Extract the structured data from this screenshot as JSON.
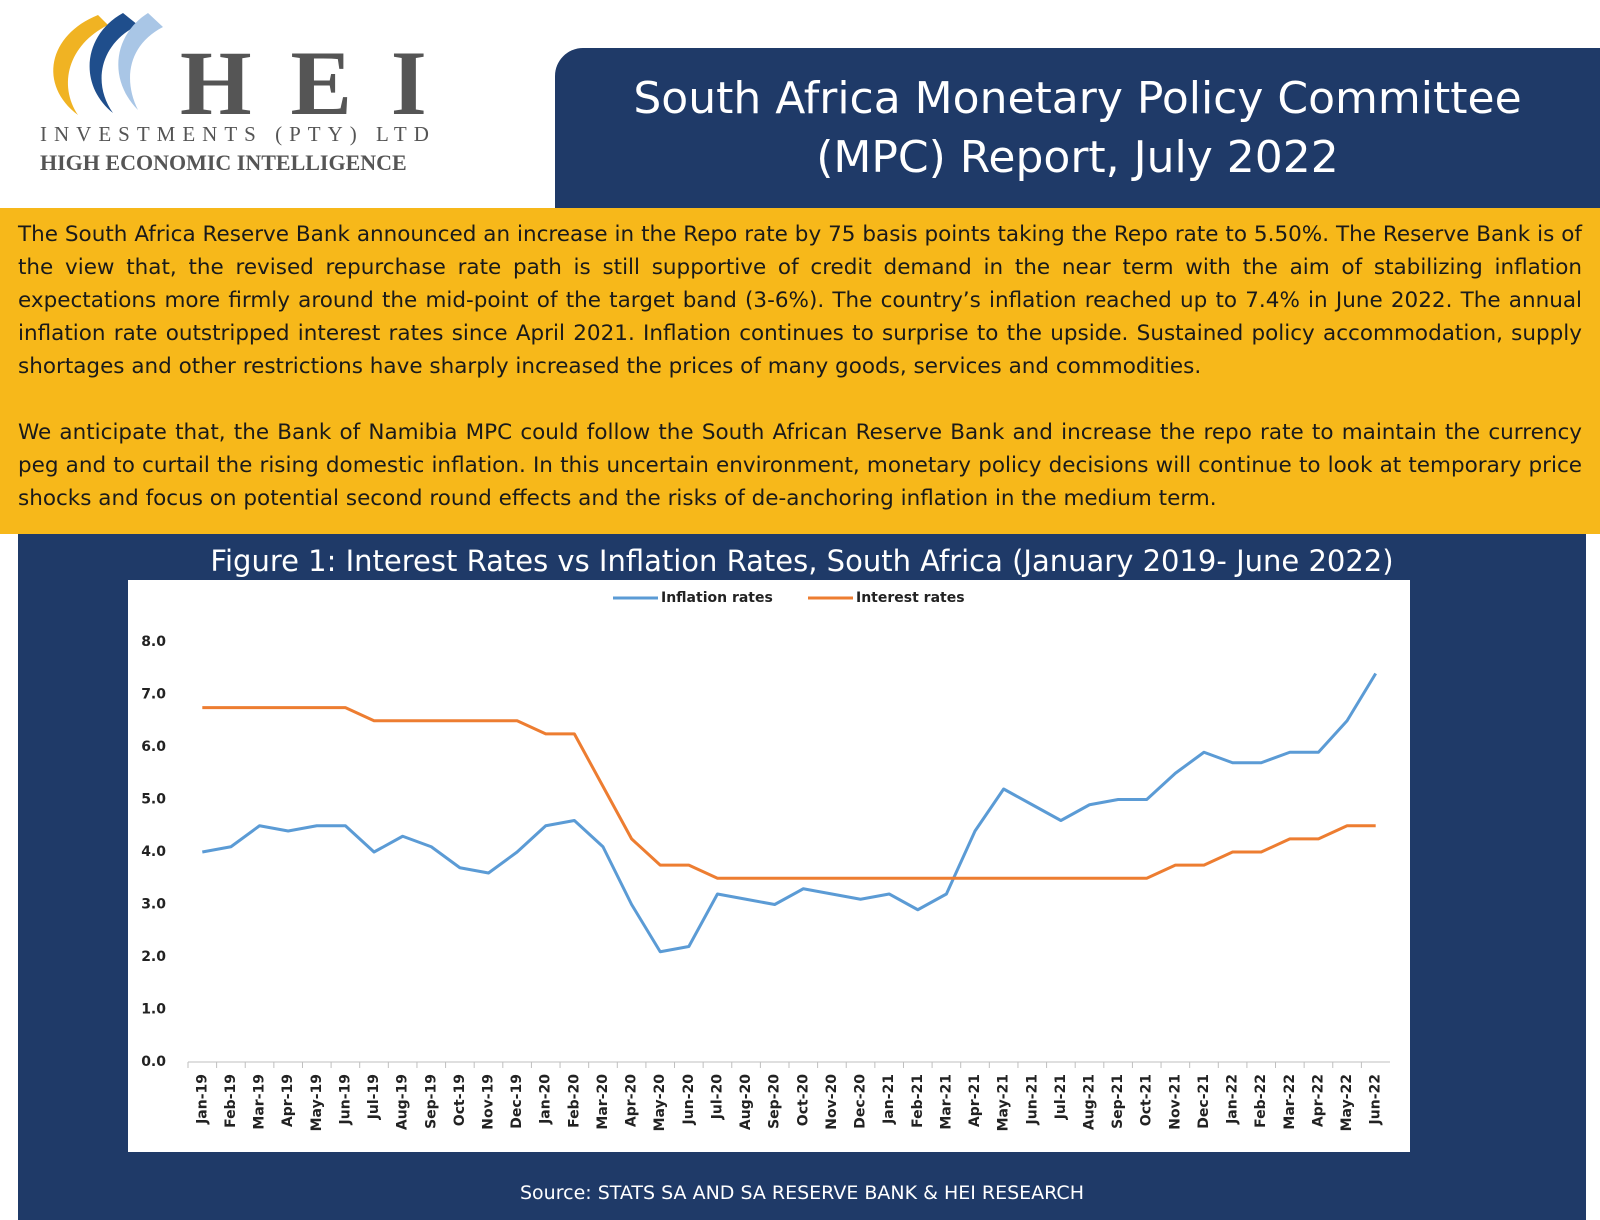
{
  "header": {
    "brand": "H E I",
    "company": "INVESTMENTS (PTY) LTD",
    "tagline": "HIGH ECONOMIC INTELLIGENCE",
    "title": "South Africa Monetary Policy Committee (MPC) Report, July 2022"
  },
  "paragraphs": [
    "The South Africa Reserve Bank announced an increase in the Repo rate by 75 basis points taking the Repo rate to 5.50%. The Reserve Bank is of the view that, the revised repurchase rate path is still supportive of credit demand in the near term with the aim of stabilizing inflation expectations more firmly around the mid-point of the target band (3-6%). The country’s inflation reached up to 7.4% in June 2022. The annual inflation rate outstripped interest rates since April 2021. Inflation continues to surprise to the upside. Sustained policy accommodation, supply shortages and other restrictions have sharply increased the prices of many goods, services and commodities.",
    "We anticipate that, the Bank of Namibia MPC could follow the South African Reserve Bank and increase the repo rate to maintain the currency peg and to curtail the rising domestic inflation. In this uncertain environment, monetary policy decisions will continue to look at temporary price shocks and focus on potential second round effects and the risks of de-anchoring inflation in the medium term."
  ],
  "chart_data": {
    "type": "line",
    "title": "Figure 1: Interest Rates vs Inflation Rates, South Africa (January 2019- June 2022)",
    "source": "Source: STATS SA AND SA RESERVE BANK & HEI RESEARCH",
    "categories": [
      "Jan-19",
      "Feb-19",
      "Mar-19",
      "Apr-19",
      "May-19",
      "Jun-19",
      "Jul-19",
      "Aug-19",
      "Sep-19",
      "Oct-19",
      "Nov-19",
      "Dec-19",
      "Jan-20",
      "Feb-20",
      "Mar-20",
      "Apr-20",
      "May-20",
      "Jun-20",
      "Jul-20",
      "Aug-20",
      "Sep-20",
      "Oct-20",
      "Nov-20",
      "Dec-20",
      "Jan-21",
      "Feb-21",
      "Mar-21",
      "Apr-21",
      "May-21",
      "Jun-21",
      "Jul-21",
      "Aug-21",
      "Sep-21",
      "Oct-21",
      "Nov-21",
      "Dec-21",
      "Jan-22",
      "Feb-22",
      "Mar-22",
      "Apr-22",
      "May-22",
      "Jun-22"
    ],
    "series": [
      {
        "name": "Inflation rates",
        "color": "#5b9bd5",
        "values": [
          4.0,
          4.1,
          4.5,
          4.4,
          4.5,
          4.5,
          4.0,
          4.3,
          4.1,
          3.7,
          3.6,
          4.0,
          4.5,
          4.6,
          4.1,
          3.0,
          2.1,
          2.2,
          3.2,
          3.1,
          3.0,
          3.3,
          3.2,
          3.1,
          3.2,
          2.9,
          3.2,
          4.4,
          5.2,
          4.9,
          4.6,
          4.9,
          5.0,
          5.0,
          5.5,
          5.9,
          5.7,
          5.7,
          5.9,
          5.9,
          6.5,
          7.4
        ]
      },
      {
        "name": "Interest rates",
        "color": "#ed7d31",
        "values": [
          6.75,
          6.75,
          6.75,
          6.75,
          6.75,
          6.75,
          6.5,
          6.5,
          6.5,
          6.5,
          6.5,
          6.5,
          6.25,
          6.25,
          5.25,
          4.25,
          3.75,
          3.75,
          3.5,
          3.5,
          3.5,
          3.5,
          3.5,
          3.5,
          3.5,
          3.5,
          3.5,
          3.5,
          3.5,
          3.5,
          3.5,
          3.5,
          3.5,
          3.5,
          3.75,
          3.75,
          4.0,
          4.0,
          4.25,
          4.25,
          4.5,
          4.5
        ]
      }
    ],
    "ylim": [
      0,
      8
    ],
    "yticks": [
      {
        "value": 0,
        "label": "0.0"
      },
      {
        "value": 1,
        "label": "1.0"
      },
      {
        "value": 2,
        "label": "2.0"
      },
      {
        "value": 3,
        "label": "3.0"
      },
      {
        "value": 4,
        "label": "4.0"
      },
      {
        "value": 5,
        "label": "5.0"
      },
      {
        "value": 6,
        "label": "6.0"
      },
      {
        "value": 7,
        "label": "7.0"
      },
      {
        "value": 8,
        "label": "8.0"
      }
    ],
    "grid": false,
    "legend": "top"
  }
}
